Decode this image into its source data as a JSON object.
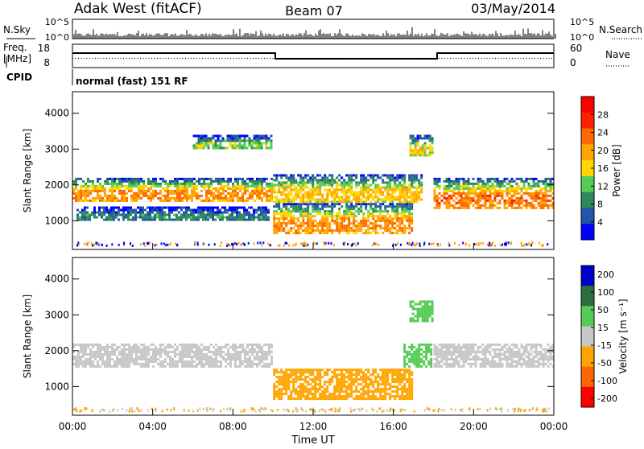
{
  "header": {
    "station": "Adak West (fitACF)",
    "beam": "Beam 07",
    "date": "03/May/2014"
  },
  "panels_top": {
    "nsky_label": "N.Sky",
    "nsearch_label": "N.Search",
    "nsky_ticks": [
      "10^5",
      "10^0"
    ],
    "freq_label_line1": "Freq.",
    "freq_label_line2": "[MHz]",
    "freq_ticks": [
      "18",
      "8"
    ],
    "nave_label": "Nave",
    "nave_ticks": [
      "60",
      "0"
    ],
    "cpid_label": "CPID",
    "cpid_text": "normal (fast) 151 RF"
  },
  "colors": {
    "power_scale": [
      "#0000ff",
      "#2255aa",
      "#2e8b57",
      "#55cc55",
      "#ffd700",
      "#ffa500",
      "#ff6a00",
      "#ff2000",
      "#ff0000"
    ],
    "velocity_scale": [
      "#0000cc",
      "#2d6e3f",
      "#55cc55",
      "#c8c8c8",
      "#ffa500",
      "#ff6600",
      "#ff0000"
    ]
  },
  "chart_data": [
    {
      "type": "heatmap",
      "title": "",
      "xlabel": "Time UT",
      "ylabel": "Slant Range [km]",
      "x_ticks": [
        "00:00",
        "04:00",
        "08:00",
        "12:00",
        "16:00",
        "20:00",
        "00:00"
      ],
      "y_ticks": [
        1000,
        2000,
        3000,
        4000
      ],
      "ylim": [
        200,
        4600
      ],
      "xlim": [
        0,
        24
      ],
      "colorbar": {
        "label": "Power [dB]",
        "ticks": [
          "4",
          "8",
          "12",
          "16",
          "20",
          "24",
          "28"
        ],
        "range": [
          0,
          32
        ]
      },
      "bands": [
        {
          "name": "main_echo",
          "start": 0,
          "end": 10,
          "range_km": [
            1500,
            2200
          ],
          "peak_db": 26
        },
        {
          "name": "near_echo",
          "start": 0.2,
          "end": 9.8,
          "range_km": [
            1000,
            1400
          ],
          "peak_db": 10
        },
        {
          "name": "upper_echo",
          "start": 6,
          "end": 10,
          "range_km": [
            3000,
            3400
          ],
          "peak_db": 16
        },
        {
          "name": "day_lower",
          "start": 10,
          "end": 17,
          "range_km": [
            600,
            1500
          ],
          "peak_db": 26
        },
        {
          "name": "day_upper",
          "start": 10,
          "end": 17.5,
          "range_km": [
            1500,
            2300
          ],
          "peak_db": 22
        },
        {
          "name": "late_echo",
          "start": 18,
          "end": 24,
          "range_km": [
            1300,
            2200
          ],
          "peak_db": 28
        },
        {
          "name": "patch_17",
          "start": 16.8,
          "end": 18,
          "range_km": [
            2800,
            3400
          ],
          "peak_db": 20
        }
      ]
    },
    {
      "type": "heatmap",
      "title": "",
      "xlabel": "Time UT",
      "ylabel": "Slant Range [km]",
      "x_ticks": [
        "00:00",
        "04:00",
        "08:00",
        "12:00",
        "16:00",
        "20:00",
        "00:00"
      ],
      "y_ticks": [
        1000,
        2000,
        3000,
        4000
      ],
      "ylim": [
        200,
        4600
      ],
      "xlim": [
        0,
        24
      ],
      "colorbar": {
        "label": "Velocity [m s⁻¹]",
        "ticks": [
          "200",
          "100",
          "50",
          "15",
          "-15",
          "-50",
          "-100",
          "-200"
        ],
        "range": [
          -250,
          250
        ]
      },
      "bands": [
        {
          "name": "ground_scatter_main",
          "start": 0,
          "end": 10,
          "range_km": [
            1500,
            2200
          ],
          "velocity": 0
        },
        {
          "name": "day_lower",
          "start": 10,
          "end": 17,
          "range_km": [
            600,
            1500
          ],
          "velocity": -40
        },
        {
          "name": "late_band",
          "start": 16.5,
          "end": 18,
          "range_km": [
            1500,
            2200
          ],
          "velocity": 30
        },
        {
          "name": "patch_17",
          "start": 16.8,
          "end": 18,
          "range_km": [
            2800,
            3400
          ],
          "velocity": 40
        },
        {
          "name": "late_echo",
          "start": 18,
          "end": 24,
          "range_km": [
            1500,
            2200
          ],
          "velocity": 0
        }
      ]
    }
  ]
}
